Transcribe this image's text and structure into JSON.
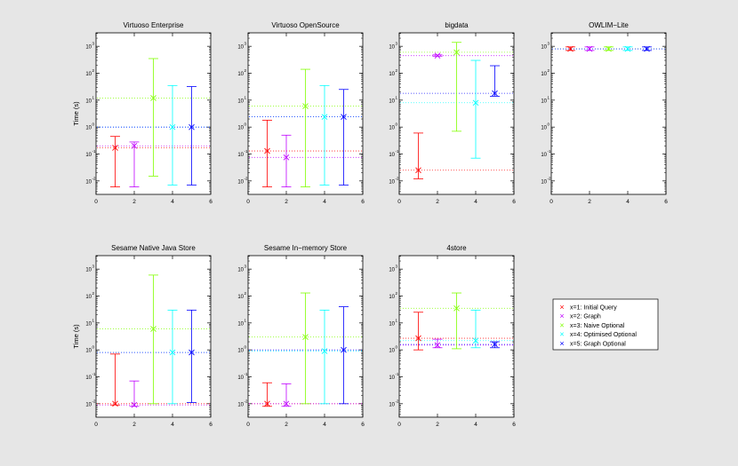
{
  "figure": {
    "ylabel": "Time (s)",
    "ytick_labels": [
      "10",
      "10",
      "10",
      "10",
      "10",
      "10"
    ],
    "ytick_exponents": [
      "-2",
      "-1",
      "0",
      "1",
      "2",
      "3"
    ],
    "xtick_labels": [
      "0",
      "2",
      "4",
      "6"
    ]
  },
  "legend": {
    "entries": [
      {
        "marker": "×",
        "label": "x=1: Initial Query",
        "color": "#ff0000"
      },
      {
        "marker": "×",
        "label": "x=2: Graph",
        "color": "#bf00ff"
      },
      {
        "marker": "×",
        "label": "x=3: Naive Optional",
        "color": "#80ff00"
      },
      {
        "marker": "×",
        "label": "x=4: Optimised Optional",
        "color": "#00ffff"
      },
      {
        "marker": "×",
        "label": "x=5: Graph Optional",
        "color": "#0000ff"
      }
    ]
  },
  "chart_data": [
    {
      "type": "errorbar",
      "title": "Virtuoso Enterprise",
      "xlim": [
        0,
        6
      ],
      "ylim_log10": [
        -2.5,
        3.5
      ],
      "yscale": "log",
      "series": [
        {
          "x": 1,
          "y": 0.17,
          "low": 0.006,
          "high": 0.45
        },
        {
          "x": 2,
          "y": 0.2,
          "low": 0.006,
          "high": 0.28
        },
        {
          "x": 3,
          "y": 12,
          "low": 0.015,
          "high": 350
        },
        {
          "x": 4,
          "y": 1.0,
          "low": 0.007,
          "high": 35
        },
        {
          "x": 5,
          "y": 1.0,
          "low": 0.007,
          "high": 32
        }
      ]
    },
    {
      "type": "errorbar",
      "title": "Virtuoso OpenSource",
      "xlim": [
        0,
        6
      ],
      "ylim_log10": [
        -2.5,
        3.5
      ],
      "yscale": "log",
      "series": [
        {
          "x": 1,
          "y": 0.13,
          "low": 0.006,
          "high": 1.8
        },
        {
          "x": 2,
          "y": 0.075,
          "low": 0.006,
          "high": 0.5
        },
        {
          "x": 3,
          "y": 6,
          "low": 0.006,
          "high": 140
        },
        {
          "x": 4,
          "y": 2.4,
          "low": 0.007,
          "high": 35
        },
        {
          "x": 5,
          "y": 2.4,
          "low": 0.007,
          "high": 25
        }
      ]
    },
    {
      "type": "errorbar",
      "title": "bigdata",
      "xlim": [
        0,
        6
      ],
      "ylim_log10": [
        -2.5,
        3.5
      ],
      "yscale": "log",
      "series": [
        {
          "x": 1,
          "y": 0.025,
          "low": 0.012,
          "high": 0.6
        },
        {
          "x": 2,
          "y": 450,
          "low": 430,
          "high": 480
        },
        {
          "x": 3,
          "y": 600,
          "low": 0.7,
          "high": 1400
        },
        {
          "x": 4,
          "y": 8,
          "low": 0.07,
          "high": 300
        },
        {
          "x": 5,
          "y": 18,
          "low": 14,
          "high": 190
        }
      ]
    },
    {
      "type": "errorbar",
      "title": "OWLIM−Lite",
      "xlim": [
        0,
        6
      ],
      "ylim_log10": [
        -2.5,
        3.5
      ],
      "yscale": "log",
      "series": [
        {
          "x": 1,
          "y": 800,
          "low": 700,
          "high": 950
        },
        {
          "x": 2,
          "y": 800,
          "low": 700,
          "high": 950
        },
        {
          "x": 3,
          "y": 800,
          "low": 700,
          "high": 950
        },
        {
          "x": 4,
          "y": 800,
          "low": 700,
          "high": 950
        },
        {
          "x": 5,
          "y": 800,
          "low": 700,
          "high": 950
        }
      ]
    },
    {
      "type": "errorbar",
      "title": "Sesame Native Java Store",
      "xlim": [
        0,
        6
      ],
      "ylim_log10": [
        -2.5,
        3.5
      ],
      "yscale": "log",
      "series": [
        {
          "x": 1,
          "y": 0.01,
          "low": 0.009,
          "high": 0.7
        },
        {
          "x": 2,
          "y": 0.009,
          "low": 0.008,
          "high": 0.07
        },
        {
          "x": 3,
          "y": 6,
          "low": 0.01,
          "high": 600
        },
        {
          "x": 4,
          "y": 0.8,
          "low": 0.01,
          "high": 30
        },
        {
          "x": 5,
          "y": 0.8,
          "low": 0.011,
          "high": 30
        }
      ]
    },
    {
      "type": "errorbar",
      "title": "Sesame In−memory Store",
      "xlim": [
        0,
        6
      ],
      "ylim_log10": [
        -2.5,
        3.5
      ],
      "yscale": "log",
      "series": [
        {
          "x": 1,
          "y": 0.01,
          "low": 0.008,
          "high": 0.06
        },
        {
          "x": 2,
          "y": 0.01,
          "low": 0.008,
          "high": 0.055
        },
        {
          "x": 3,
          "y": 3,
          "low": 0.01,
          "high": 130
        },
        {
          "x": 4,
          "y": 0.9,
          "low": 0.01,
          "high": 30
        },
        {
          "x": 5,
          "y": 1.0,
          "low": 0.01,
          "high": 40
        }
      ]
    },
    {
      "type": "errorbar",
      "title": "4store",
      "xlim": [
        0,
        6
      ],
      "ylim_log10": [
        -2.5,
        3.5
      ],
      "yscale": "log",
      "series": [
        {
          "x": 1,
          "y": 2.7,
          "low": 1.0,
          "high": 25
        },
        {
          "x": 2,
          "y": 1.5,
          "low": 1.2,
          "high": 2.5
        },
        {
          "x": 3,
          "y": 35,
          "low": 1.1,
          "high": 130
        },
        {
          "x": 4,
          "y": 2.2,
          "low": 1.2,
          "high": 30
        },
        {
          "x": 5,
          "y": 1.6,
          "low": 1.2,
          "high": 2.0
        }
      ]
    }
  ]
}
